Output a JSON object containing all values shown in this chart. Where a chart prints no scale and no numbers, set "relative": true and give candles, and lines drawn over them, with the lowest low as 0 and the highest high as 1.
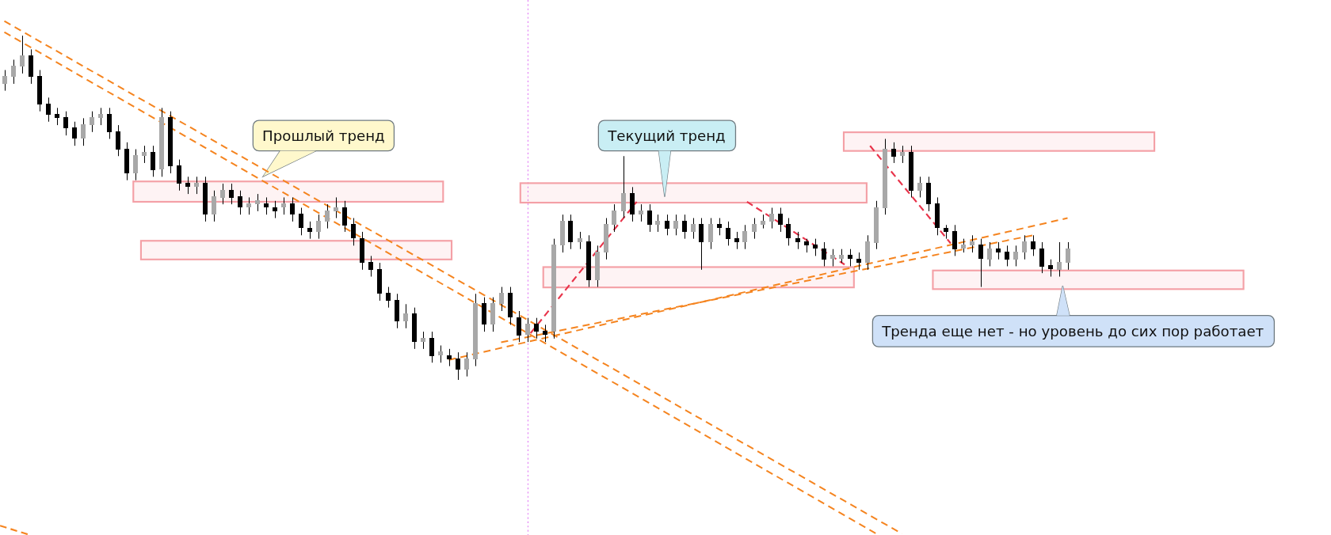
{
  "chart_data": {
    "type": "candlestick",
    "relative": true,
    "categories": [
      null,
      null,
      null,
      null,
      null,
      null,
      null,
      null,
      null,
      null,
      null,
      null,
      null,
      null,
      null,
      null,
      null,
      null,
      null,
      null,
      null,
      null,
      null,
      null,
      null,
      null,
      null,
      null,
      null,
      null,
      null,
      null,
      null,
      null,
      null,
      null,
      null,
      null,
      null,
      null,
      null,
      null,
      null,
      null,
      null,
      null,
      null,
      null,
      null,
      null,
      null,
      null,
      null,
      null,
      null,
      null,
      null,
      null,
      null,
      null,
      null,
      null,
      null,
      null,
      null,
      null,
      null,
      null,
      null,
      null,
      null,
      null,
      null,
      null,
      null,
      null,
      null,
      null,
      null,
      null,
      null,
      null,
      null,
      null,
      null,
      null,
      null,
      null,
      null,
      null,
      null,
      null,
      null,
      null,
      null,
      null,
      null,
      null,
      null,
      null,
      null,
      null,
      null,
      null,
      null,
      null,
      null,
      null,
      null,
      null,
      null,
      null,
      null,
      null,
      null,
      null,
      null,
      null,
      null,
      null,
      null,
      null,
      null
    ],
    "ohlc": [
      [
        0.86,
        0.9,
        0.84,
        0.88
      ],
      [
        0.88,
        0.93,
        0.86,
        0.91
      ],
      [
        0.91,
        1.0,
        0.89,
        0.94
      ],
      [
        0.94,
        0.96,
        0.86,
        0.88
      ],
      [
        0.88,
        0.9,
        0.78,
        0.8
      ],
      [
        0.8,
        0.82,
        0.75,
        0.77
      ],
      [
        0.77,
        0.79,
        0.74,
        0.76
      ],
      [
        0.76,
        0.78,
        0.71,
        0.73
      ],
      [
        0.73,
        0.75,
        0.68,
        0.7
      ],
      [
        0.7,
        0.76,
        0.68,
        0.74
      ],
      [
        0.74,
        0.78,
        0.72,
        0.76
      ],
      [
        0.76,
        0.79,
        0.74,
        0.77
      ],
      [
        0.77,
        0.79,
        0.7,
        0.72
      ],
      [
        0.72,
        0.74,
        0.65,
        0.67
      ],
      [
        0.67,
        0.69,
        0.58,
        0.6
      ],
      [
        0.6,
        0.67,
        0.58,
        0.65
      ],
      [
        0.65,
        0.68,
        0.63,
        0.66
      ],
      [
        0.66,
        0.68,
        0.59,
        0.61
      ],
      [
        0.61,
        0.79,
        0.59,
        0.76
      ],
      [
        0.76,
        0.78,
        0.6,
        0.62
      ],
      [
        0.62,
        0.64,
        0.55,
        0.57
      ],
      [
        0.57,
        0.59,
        0.54,
        0.56
      ],
      [
        0.56,
        0.59,
        0.54,
        0.57
      ],
      [
        0.57,
        0.59,
        0.46,
        0.48
      ],
      [
        0.48,
        0.55,
        0.46,
        0.53
      ],
      [
        0.53,
        0.57,
        0.51,
        0.55
      ],
      [
        0.55,
        0.57,
        0.51,
        0.53
      ],
      [
        0.53,
        0.55,
        0.48,
        0.5
      ],
      [
        0.5,
        0.53,
        0.48,
        0.51
      ],
      [
        0.51,
        0.54,
        0.49,
        0.52
      ],
      [
        0.51,
        0.53,
        0.48,
        0.5
      ],
      [
        0.5,
        0.52,
        0.47,
        0.49
      ],
      [
        0.5,
        0.53,
        0.48,
        0.51
      ],
      [
        0.51,
        0.53,
        0.46,
        0.48
      ],
      [
        0.48,
        0.5,
        0.42,
        0.44
      ],
      [
        0.44,
        0.46,
        0.41,
        0.43
      ],
      [
        0.43,
        0.48,
        0.41,
        0.46
      ],
      [
        0.46,
        0.51,
        0.44,
        0.49
      ],
      [
        0.49,
        0.53,
        0.47,
        0.5
      ],
      [
        0.5,
        0.52,
        0.43,
        0.45
      ],
      [
        0.45,
        0.47,
        0.39,
        0.41
      ],
      [
        0.41,
        0.43,
        0.32,
        0.34
      ],
      [
        0.34,
        0.36,
        0.3,
        0.32
      ],
      [
        0.32,
        0.34,
        0.23,
        0.25
      ],
      [
        0.25,
        0.27,
        0.21,
        0.23
      ],
      [
        0.23,
        0.25,
        0.15,
        0.17
      ],
      [
        0.17,
        0.22,
        0.15,
        0.19
      ],
      [
        0.19,
        0.21,
        0.09,
        0.11
      ],
      [
        0.11,
        0.14,
        0.09,
        0.12
      ],
      [
        0.12,
        0.14,
        0.05,
        0.07
      ],
      [
        0.07,
        0.1,
        0.05,
        0.08
      ],
      [
        0.07,
        0.09,
        0.04,
        0.06
      ],
      [
        0.06,
        0.08,
        0,
        0.03
      ],
      [
        0.03,
        0.08,
        0.01,
        0.06
      ],
      [
        0.06,
        0.25,
        0.04,
        0.22
      ],
      [
        0.22,
        0.24,
        0.14,
        0.16
      ],
      [
        0.16,
        0.24,
        0.14,
        0.22
      ],
      [
        0.22,
        0.27,
        0.2,
        0.25
      ],
      [
        0.25,
        0.27,
        0.16,
        0.18
      ],
      [
        0.18,
        0.2,
        0.11,
        0.13
      ],
      [
        0.13,
        0.18,
        0.11,
        0.16
      ],
      [
        0.16,
        0.18,
        0.12,
        0.14
      ],
      [
        0.14,
        0.16,
        0.11,
        0.13
      ],
      [
        0.14,
        0.41,
        0.12,
        0.39
      ],
      [
        0.39,
        0.48,
        0.37,
        0.46
      ],
      [
        0.46,
        0.48,
        0.38,
        0.4
      ],
      [
        0.4,
        0.43,
        0.38,
        0.41
      ],
      [
        0.4,
        0.42,
        0.27,
        0.29
      ],
      [
        0.29,
        0.39,
        0.27,
        0.37
      ],
      [
        0.37,
        0.47,
        0.35,
        0.45
      ],
      [
        0.45,
        0.51,
        0.43,
        0.49
      ],
      [
        0.49,
        0.65,
        0.47,
        0.54
      ],
      [
        0.54,
        0.56,
        0.46,
        0.48
      ],
      [
        0.48,
        0.51,
        0.46,
        0.49
      ],
      [
        0.49,
        0.51,
        0.43,
        0.45
      ],
      [
        0.45,
        0.48,
        0.43,
        0.46
      ],
      [
        0.46,
        0.48,
        0.42,
        0.44
      ],
      [
        0.44,
        0.48,
        0.42,
        0.46
      ],
      [
        0.46,
        0.48,
        0.41,
        0.43
      ],
      [
        0.43,
        0.47,
        0.41,
        0.45
      ],
      [
        0.45,
        0.47,
        0.32,
        0.4
      ],
      [
        0.4,
        0.47,
        0.38,
        0.45
      ],
      [
        0.45,
        0.47,
        0.42,
        0.44
      ],
      [
        0.44,
        0.46,
        0.39,
        0.41
      ],
      [
        0.41,
        0.43,
        0.38,
        0.4
      ],
      [
        0.4,
        0.45,
        0.38,
        0.43
      ],
      [
        0.43,
        0.47,
        0.41,
        0.45
      ],
      [
        0.45,
        0.48,
        0.44,
        0.46
      ],
      [
        0.46,
        0.5,
        0.44,
        0.48
      ],
      [
        0.48,
        0.5,
        0.43,
        0.45
      ],
      [
        0.45,
        0.47,
        0.39,
        0.41
      ],
      [
        0.41,
        0.43,
        0.38,
        0.4
      ],
      [
        0.4,
        0.41,
        0.37,
        0.39
      ],
      [
        0.39,
        0.41,
        0.36,
        0.38
      ],
      [
        0.38,
        0.4,
        0.33,
        0.35
      ],
      [
        0.35,
        0.38,
        0.33,
        0.36
      ],
      [
        0.35,
        0.38,
        0.34,
        0.36
      ],
      [
        0.36,
        0.38,
        0.33,
        0.35
      ],
      [
        0.35,
        0.37,
        0.32,
        0.34
      ],
      [
        0.34,
        0.42,
        0.32,
        0.4
      ],
      [
        0.4,
        0.52,
        0.38,
        0.5
      ],
      [
        0.5,
        0.7,
        0.48,
        0.67
      ],
      [
        0.67,
        0.69,
        0.63,
        0.65
      ],
      [
        0.65,
        0.68,
        0.63,
        0.66
      ],
      [
        0.66,
        0.68,
        0.53,
        0.55
      ],
      [
        0.55,
        0.59,
        0.53,
        0.57
      ],
      [
        0.57,
        0.59,
        0.49,
        0.51
      ],
      [
        0.51,
        0.53,
        0.42,
        0.44
      ],
      [
        0.44,
        0.45,
        0.41,
        0.43
      ],
      [
        0.43,
        0.45,
        0.36,
        0.38
      ],
      [
        0.38,
        0.41,
        0.37,
        0.39
      ],
      [
        0.39,
        0.42,
        0.37,
        0.4
      ],
      [
        0.39,
        0.41,
        0.27,
        0.35
      ],
      [
        0.35,
        0.4,
        0.33,
        0.38
      ],
      [
        0.38,
        0.4,
        0.35,
        0.37
      ],
      [
        0.37,
        0.39,
        0.33,
        0.35
      ],
      [
        0.35,
        0.39,
        0.33,
        0.37
      ],
      [
        0.37,
        0.42,
        0.35,
        0.4
      ],
      [
        0.4,
        0.42,
        0.36,
        0.38
      ],
      [
        0.38,
        0.4,
        0.31,
        0.33
      ],
      [
        0.33,
        0.35,
        0.3,
        0.32
      ],
      [
        0.32,
        0.4,
        0.3,
        0.34
      ],
      [
        0.34,
        0.4,
        0.32,
        0.38
      ]
    ],
    "colors": [
      "#a8a8a8",
      "#a8a8a8",
      "#a8a8a8",
      "#000000",
      "#000000",
      "#000000",
      "#000000",
      "#000000",
      "#000000",
      "#a8a8a8",
      "#a8a8a8",
      "#a8a8a8",
      "#000000",
      "#000000",
      "#000000",
      "#a8a8a8",
      "#a8a8a8",
      "#000000",
      "#a8a8a8",
      "#000000",
      "#000000",
      "#000000",
      "#a8a8a8",
      "#000000",
      "#a8a8a8",
      "#a8a8a8",
      "#000000",
      "#000000",
      "#a8a8a8",
      "#a8a8a8",
      "#000000",
      "#000000",
      "#a8a8a8",
      "#000000",
      "#000000",
      "#000000",
      "#a8a8a8",
      "#a8a8a8",
      "#a8a8a8",
      "#000000",
      "#000000",
      "#000000",
      "#000000",
      "#000000",
      "#000000",
      "#000000",
      "#a8a8a8",
      "#000000",
      "#a8a8a8",
      "#000000",
      "#a8a8a8",
      "#000000",
      "#000000",
      "#a8a8a8",
      "#a8a8a8",
      "#000000",
      "#a8a8a8",
      "#a8a8a8",
      "#000000",
      "#000000",
      "#a8a8a8",
      "#000000",
      "#000000",
      "#a8a8a8",
      "#a8a8a8",
      "#000000",
      "#a8a8a8",
      "#000000",
      "#a8a8a8",
      "#a8a8a8",
      "#a8a8a8",
      "#a8a8a8",
      "#000000",
      "#a8a8a8",
      "#000000",
      "#a8a8a8",
      "#000000",
      "#a8a8a8",
      "#000000",
      "#a8a8a8",
      "#000000",
      "#a8a8a8",
      "#000000",
      "#000000",
      "#000000",
      "#a8a8a8",
      "#a8a8a8",
      "#a8a8a8",
      "#a8a8a8",
      "#000000",
      "#000000",
      "#000000",
      "#000000",
      "#000000",
      "#000000",
      "#a8a8a8",
      "#a8a8a8",
      "#000000",
      "#000000",
      "#a8a8a8",
      "#a8a8a8",
      "#a8a8a8",
      "#000000",
      "#a8a8a8",
      "#000000",
      "#a8a8a8",
      "#000000",
      "#000000",
      "#000000",
      "#000000",
      "#a8a8a8",
      "#a8a8a8",
      "#000000",
      "#a8a8a8",
      "#000000",
      "#000000",
      "#a8a8a8",
      "#a8a8a8",
      "#000000",
      "#000000",
      "#000000",
      "#a8a8a8",
      "#a8a8a8"
    ],
    "series": [
      {
        "type": "line",
        "color": "#f5841f",
        "line_style": "dashed",
        "values": [
          1.042,
          null,
          null,
          null,
          null,
          null,
          null,
          null,
          null,
          null,
          null,
          null,
          null,
          null,
          null,
          null,
          null,
          null,
          null,
          null,
          null,
          null,
          null,
          null,
          null,
          null,
          null,
          null,
          null,
          null,
          null,
          null,
          null,
          null,
          null,
          null,
          null,
          null,
          null,
          null,
          null,
          null,
          null,
          null,
          null,
          null,
          null,
          null,
          null,
          null,
          null,
          null,
          null,
          null,
          null,
          null,
          null,
          null,
          null,
          null,
          null,
          null,
          null,
          null,
          null,
          null,
          null,
          null,
          null,
          null,
          null,
          null,
          null,
          null,
          null,
          null,
          null,
          null,
          null,
          null,
          null,
          null,
          null,
          null,
          null,
          null,
          null,
          null,
          null,
          null,
          null,
          null,
          null,
          null,
          null,
          null,
          null,
          null,
          null,
          null,
          null,
          null,
          null,
          -0.447,
          null,
          null,
          null,
          null,
          null,
          null,
          null,
          null,
          null,
          null,
          null,
          null,
          null,
          null,
          null,
          null,
          null,
          null,
          null
        ]
      },
      {
        "type": "line",
        "color": "#f5841f",
        "line_style": "dashed",
        "values": [
          1.01,
          null,
          null,
          null,
          null,
          null,
          null,
          null,
          null,
          null,
          null,
          null,
          null,
          null,
          null,
          null,
          null,
          null,
          null,
          null,
          null,
          null,
          null,
          null,
          null,
          null,
          null,
          null,
          null,
          null,
          null,
          null,
          null,
          null,
          null,
          null,
          null,
          null,
          null,
          null,
          null,
          null,
          null,
          null,
          null,
          null,
          null,
          null,
          null,
          null,
          null,
          null,
          null,
          null,
          null,
          null,
          null,
          null,
          null,
          null,
          null,
          null,
          null,
          null,
          null,
          null,
          null,
          null,
          null,
          null,
          null,
          null,
          null,
          null,
          null,
          null,
          null,
          null,
          null,
          null,
          null,
          null,
          null,
          null,
          null,
          null,
          null,
          null,
          null,
          null,
          null,
          null,
          null,
          null,
          null,
          null,
          null,
          null,
          null,
          null,
          -0.446,
          null,
          null,
          null,
          null,
          null,
          null,
          null,
          null,
          null,
          null,
          null,
          null,
          null,
          null,
          null,
          null,
          null,
          null,
          null,
          null,
          null,
          null
        ]
      },
      {
        "type": "line",
        "color": "#f5841f",
        "line_style": "dashed",
        "values": [
          null,
          null,
          null,
          null,
          null,
          null,
          null,
          null,
          null,
          null,
          null,
          null,
          null,
          null,
          null,
          null,
          null,
          null,
          null,
          null,
          null,
          null,
          null,
          null,
          null,
          null,
          null,
          null,
          null,
          null,
          null,
          null,
          null,
          null,
          null,
          null,
          null,
          null,
          null,
          null,
          null,
          null,
          null,
          null,
          null,
          null,
          null,
          null,
          null,
          null,
          null,
          0.058,
          null,
          null,
          null,
          null,
          null,
          null,
          null,
          null,
          null,
          null,
          null,
          null,
          null,
          null,
          null,
          null,
          null,
          null,
          null,
          null,
          null,
          null,
          null,
          null,
          null,
          null,
          null,
          null,
          null,
          null,
          null,
          null,
          null,
          null,
          null,
          null,
          null,
          null,
          null,
          null,
          null,
          null,
          null,
          null,
          null,
          null,
          null,
          null,
          null,
          null,
          null,
          null,
          null,
          null,
          null,
          null,
          null,
          null,
          null,
          null,
          null,
          null,
          null,
          null,
          null,
          null,
          null,
          null,
          null,
          null,
          0.47
        ]
      },
      {
        "type": "line",
        "color": "#f5841f",
        "line_style": "dashed",
        "values": [
          null,
          null,
          null,
          null,
          null,
          null,
          null,
          null,
          null,
          null,
          null,
          null,
          null,
          null,
          null,
          null,
          null,
          null,
          null,
          null,
          null,
          null,
          null,
          null,
          null,
          null,
          null,
          null,
          null,
          null,
          null,
          null,
          null,
          null,
          null,
          null,
          null,
          null,
          null,
          null,
          null,
          null,
          null,
          null,
          null,
          null,
          null,
          null,
          null,
          null,
          null,
          null,
          null,
          null,
          null,
          null,
          null,
          0.109,
          null,
          null,
          null,
          null,
          null,
          null,
          null,
          null,
          null,
          null,
          null,
          null,
          null,
          null,
          null,
          null,
          null,
          null,
          null,
          null,
          null,
          null,
          null,
          null,
          null,
          null,
          null,
          null,
          null,
          null,
          null,
          null,
          null,
          null,
          null,
          null,
          null,
          null,
          null,
          null,
          null,
          null,
          null,
          null,
          null,
          null,
          null,
          null,
          null,
          null,
          null,
          null,
          null,
          null,
          null,
          null,
          null,
          null,
          null,
          null,
          0.42,
          null,
          null,
          null,
          null
        ]
      }
    ],
    "annotations": [
      "Прошлый тренд",
      "Текущий тренд",
      "Тренда еще нет - но уровень до сих пор работает"
    ]
  }
}
